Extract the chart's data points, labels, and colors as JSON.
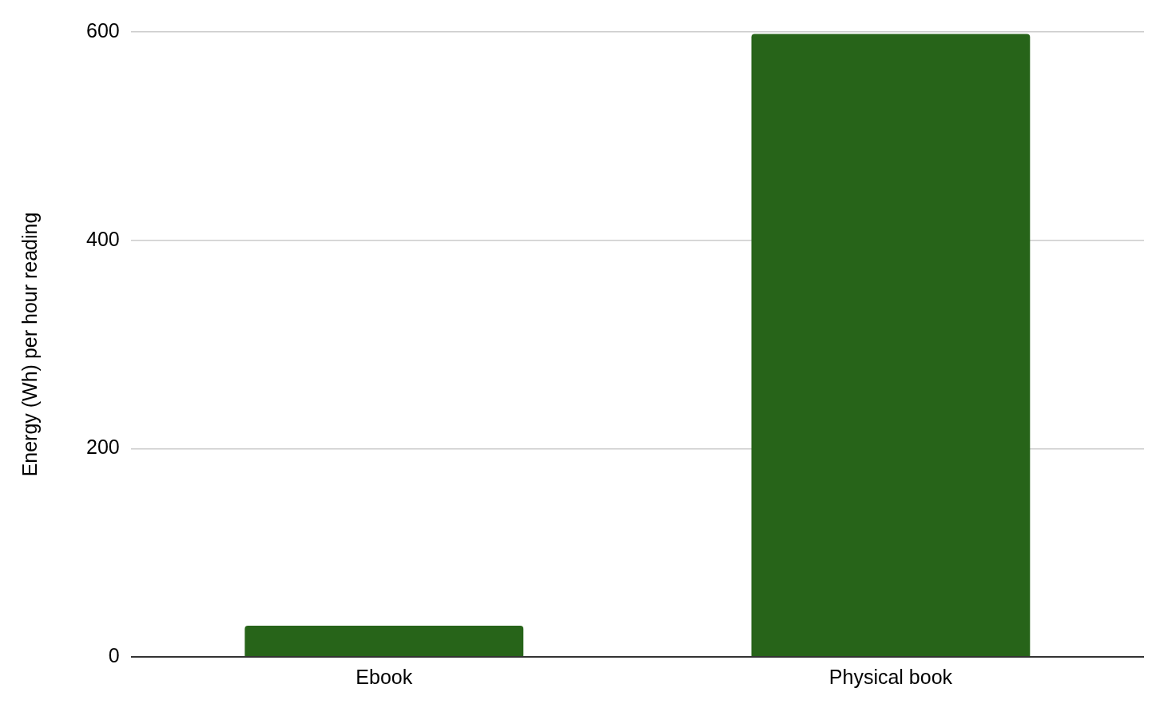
{
  "chart_data": {
    "type": "bar",
    "ylabel": "Energy (Wh) per hour reading",
    "categories": [
      "Ebook",
      "Physical book"
    ],
    "values": [
      30,
      598
    ],
    "color": "#276419",
    "ylim": [
      0,
      600
    ],
    "yticks": [
      0,
      200,
      400,
      600
    ],
    "grid": "y",
    "legend": false
  }
}
